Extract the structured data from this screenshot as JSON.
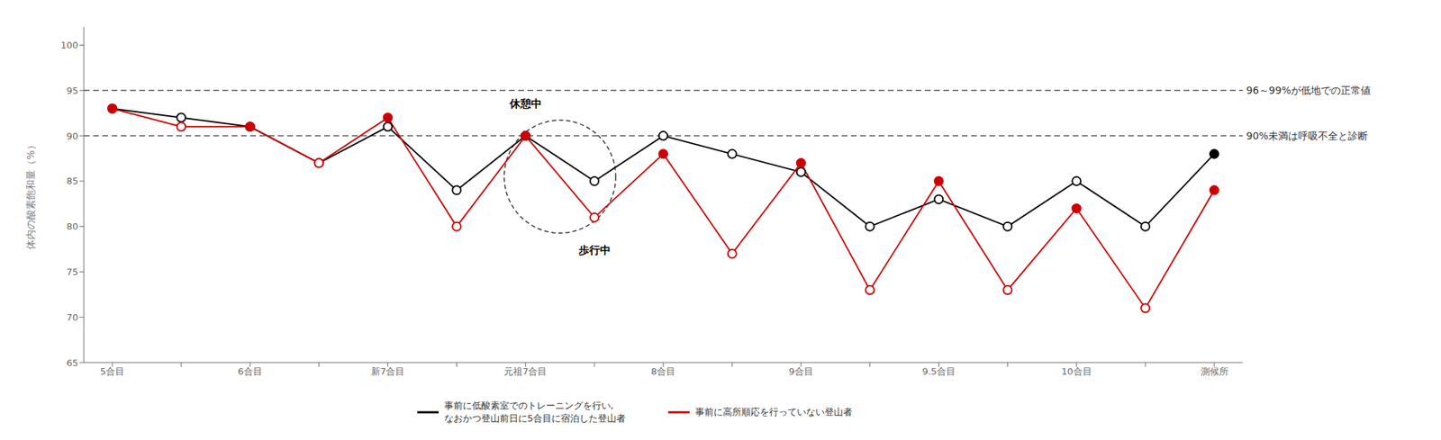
{
  "chart_data": {
    "type": "line",
    "categories": [
      "5合目",
      null,
      "6合目",
      null,
      "新7合目",
      null,
      "元祖7合目",
      null,
      "8合目",
      null,
      "9合目",
      null,
      "9.5合目",
      null,
      "10合目",
      null,
      "測候所"
    ],
    "series": [
      {
        "name": "事前に低酸素室でのトレーニングを行い,\nなおかつ登山前日に5合目に宿泊した登山者",
        "color": "#000000",
        "values": [
          93,
          92,
          91,
          87,
          91,
          84,
          90,
          85,
          90,
          88,
          86,
          80,
          83,
          80,
          85,
          80,
          88
        ]
      },
      {
        "name": "事前に高所順応を行っていない登山者",
        "color": "#cc0000",
        "values": [
          93,
          91,
          91,
          87,
          92,
          80,
          90,
          81,
          88,
          77,
          87,
          73,
          85,
          73,
          82,
          71,
          84
        ]
      }
    ],
    "ylim": [
      65,
      102
    ],
    "yticks": [
      65,
      70,
      75,
      80,
      85,
      90,
      95,
      100
    ],
    "ylabel": "体内の酸素飽和量（%）",
    "reference_lines": [
      {
        "y": 95,
        "label": "96～99%が低地での正常値"
      },
      {
        "y": 90,
        "label": "90%未満は呼吸不全と診断"
      }
    ],
    "annotations": [
      {
        "text": "休憩中",
        "x": 6,
        "y": 90
      },
      {
        "text": "歩行中",
        "x": 7,
        "y": 81
      }
    ],
    "legend": "bottom",
    "grid": false
  }
}
